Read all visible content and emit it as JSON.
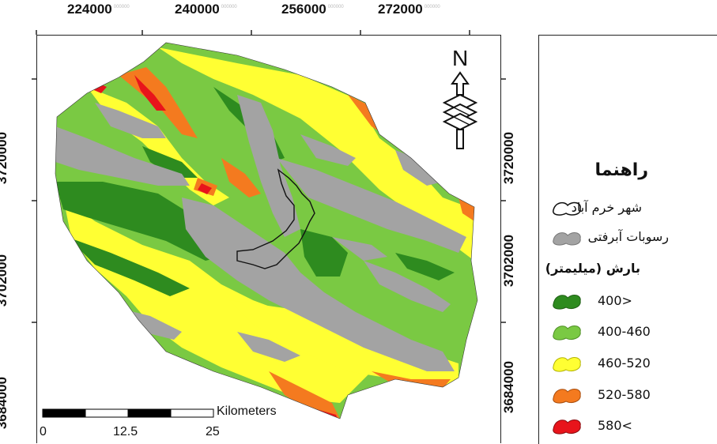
{
  "map": {
    "top_ticks": [
      "224000",
      "240000",
      "256000",
      "272000"
    ],
    "left_ticks": [
      "3720000",
      "3702000",
      "3684000"
    ],
    "right_ticks": [
      "3720000",
      "3702000",
      "3684000"
    ],
    "tick_suffix": "000000",
    "north_label": "N"
  },
  "scale_bar": {
    "unit": "Kilometers",
    "labels": [
      "0",
      "12.5",
      "25"
    ]
  },
  "legend": {
    "title": "راهنما",
    "city": "شهر خرم آباد",
    "alluvium": "رسوبات آبرفتی",
    "precip_title": "بارش (میلیمتر)",
    "classes": [
      {
        "label": "400>",
        "color": "#2e8b1f"
      },
      {
        "label": "400-460",
        "color": "#7ac943"
      },
      {
        "label": "460-520",
        "color": "#ffff33"
      },
      {
        "label": "520-580",
        "color": "#f47a1f"
      },
      {
        "label": "580<",
        "color": "#e8141b"
      }
    ],
    "alluvium_color": "#a3a3a3"
  }
}
